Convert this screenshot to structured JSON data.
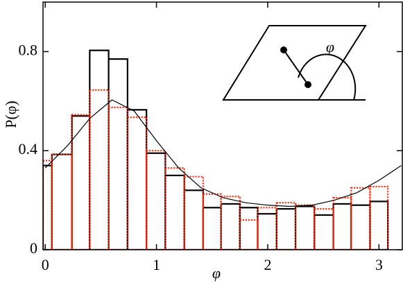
{
  "chart_data": {
    "type": "histogram",
    "x_label": "φ",
    "y_label": "P(φ)",
    "inset_label": "φ",
    "bins": [
      -0.02,
      0.06,
      0.24,
      0.4,
      0.57,
      0.74,
      0.91,
      1.08,
      1.25,
      1.42,
      1.58,
      1.75,
      1.91,
      2.08,
      2.25,
      2.42,
      2.59,
      2.75,
      2.92,
      3.08
    ],
    "series": [
      {
        "color": "#000000",
        "style": "solid",
        "values": [
          0.34,
          0.385,
          0.54,
          0.805,
          0.77,
          0.565,
          0.39,
          0.3,
          0.24,
          0.17,
          0.185,
          0.17,
          0.145,
          0.165,
          0.175,
          0.14,
          0.185,
          0.18,
          0.195
        ]
      },
      {
        "color": "#ff2200",
        "style": "dotted",
        "values": [
          0.36,
          0.385,
          0.545,
          0.645,
          0.575,
          0.535,
          0.4,
          0.33,
          0.295,
          0.225,
          0.215,
          0.12,
          0.17,
          0.19,
          0.18,
          0.165,
          0.21,
          0.25,
          0.255
        ]
      }
    ],
    "curve": {
      "color": "#000000",
      "x": [
        0,
        0.2,
        0.4,
        0.6,
        0.8,
        1.0,
        1.2,
        1.4,
        1.6,
        1.8,
        2.0,
        2.2,
        2.4,
        2.6,
        2.8,
        3.0,
        3.2
      ],
      "values": [
        0.33,
        0.42,
        0.53,
        0.605,
        0.56,
        0.44,
        0.33,
        0.25,
        0.21,
        0.19,
        0.18,
        0.175,
        0.18,
        0.2,
        0.23,
        0.28,
        0.34
      ]
    },
    "xlim": [
      -0.02,
      3.21
    ],
    "ylim": [
      0,
      1.0
    ],
    "xticks": [
      0,
      1,
      2,
      3
    ],
    "yticks": [
      0,
      0.4,
      0.8
    ]
  }
}
